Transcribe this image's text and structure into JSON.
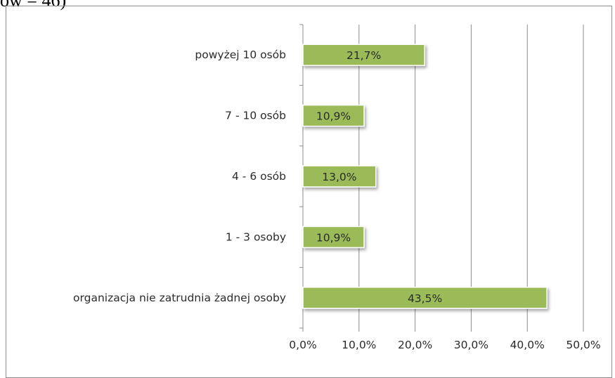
{
  "header_fragment": "ów = 46)",
  "chart_data": {
    "type": "bar",
    "orientation": "horizontal",
    "categories": [
      "powyżej 10 osób",
      "7 - 10 osób",
      "4 - 6 osób",
      "1 - 3 osoby",
      "organizacja nie zatrudnia żadnej osoby"
    ],
    "values": [
      21.7,
      10.9,
      13.0,
      10.9,
      43.5
    ],
    "value_labels": [
      "21,7%",
      "10,9%",
      "13,0%",
      "10,9%",
      "43,5%"
    ],
    "x_ticks": [
      "0,0%",
      "10,0%",
      "20,0%",
      "30,0%",
      "40,0%",
      "50,0%"
    ],
    "xlim": [
      0,
      50
    ],
    "grid": true,
    "legend": "none",
    "title": "",
    "xlabel": "",
    "ylabel": "",
    "colors": {
      "bar_fill": "#9bbb59",
      "bar_border": "#ffffff",
      "gridline": "#8c8c8c",
      "axis": "#8c8c8c"
    }
  }
}
